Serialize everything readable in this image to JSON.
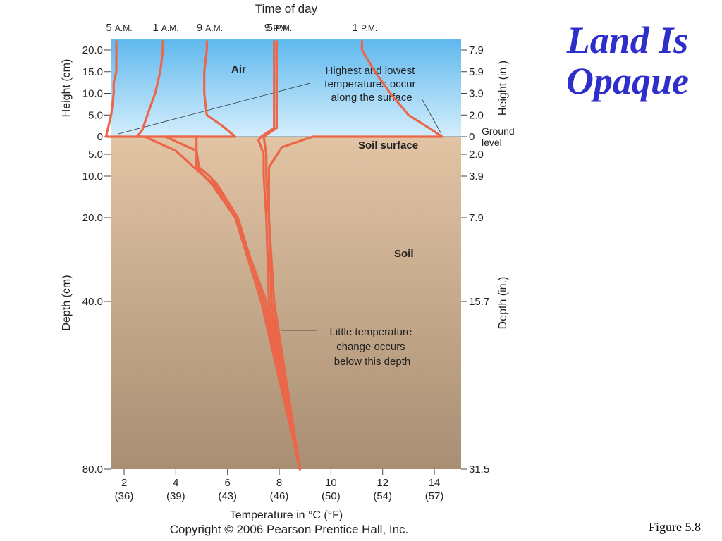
{
  "slide": {
    "title_line1": "Land Is",
    "title_line2": "Opaque",
    "figure_label": "Figure 5.8",
    "copyright": "Copyright © 2006 Pearson Prentice Hall, Inc."
  },
  "colors": {
    "air_top": "#5fb8ee",
    "air_bottom": "#d4eefc",
    "soil_top": "#e2c4a4",
    "soil_bottom": "#a88e73",
    "curve": "#ec6649"
  },
  "chart_data": {
    "type": "line",
    "top_axis_title": "Time of day",
    "x_axis_title": "Temperature in °C (°F)",
    "x_range": [
      1.5,
      15.2
    ],
    "x_ticks": [
      {
        "c": 2,
        "c_label": "2",
        "f_label": "(36)"
      },
      {
        "c": 4,
        "c_label": "4",
        "f_label": "(39)"
      },
      {
        "c": 6,
        "c_label": "6",
        "f_label": "(43)"
      },
      {
        "c": 8,
        "c_label": "8",
        "f_label": "(46)"
      },
      {
        "c": 10,
        "c_label": "10",
        "f_label": "(50)"
      },
      {
        "c": 12,
        "c_label": "12",
        "f_label": "(54)"
      },
      {
        "c": 14,
        "c_label": "14",
        "f_label": "(57)"
      }
    ],
    "left_axis_titles": {
      "height": "Height (cm)",
      "depth": "Depth (cm)"
    },
    "right_axis_titles": {
      "height": "Height (in.)",
      "depth": "Depth (in.)"
    },
    "height_ticks": [
      {
        "cm": 20,
        "cm_label": "20.0",
        "in_label": "7.9"
      },
      {
        "cm": 15,
        "cm_label": "15.0",
        "in_label": "5.9"
      },
      {
        "cm": 10,
        "cm_label": "10.0",
        "in_label": "3.9"
      },
      {
        "cm": 5,
        "cm_label": "5.0",
        "in_label": "2.0"
      },
      {
        "cm": 0,
        "cm_label": "0",
        "in_label": "0"
      }
    ],
    "depth_ticks": [
      {
        "cm": 5,
        "cm_label": "5.0",
        "in_label": "2.0"
      },
      {
        "cm": 10,
        "cm_label": "10.0",
        "in_label": "3.9"
      },
      {
        "cm": 20,
        "cm_label": "20.0",
        "in_label": "7.9"
      },
      {
        "cm": 40,
        "cm_label": "40.0",
        "in_label": "15.7"
      },
      {
        "cm": 80,
        "cm_label": "80.0",
        "in_label": "31.5"
      }
    ],
    "ground_label": "Ground level",
    "zone_labels": {
      "air": "Air",
      "soil_surface": "Soil surface",
      "soil": "Soil"
    },
    "annotations": {
      "surface_note": [
        "Highest and lowest",
        "temperatures occur",
        "along the surface"
      ],
      "depth_note": [
        "Little temperature",
        "change occurs",
        "below this depth"
      ]
    },
    "series": [
      {
        "name": "5 A.M.",
        "time": "5",
        "period": "A.M.",
        "top_temp": 1.7,
        "points": [
          [
            1.7,
            22
          ],
          [
            1.7,
            20
          ],
          [
            1.7,
            15
          ],
          [
            1.6,
            12.5
          ],
          [
            1.6,
            10
          ],
          [
            1.5,
            5
          ],
          [
            1.3,
            0
          ],
          [
            2.8,
            0
          ],
          [
            4.0,
            -4
          ],
          [
            4.7,
            -8
          ],
          [
            5.1,
            -10
          ],
          [
            5.4,
            -12
          ],
          [
            6.3,
            -20
          ],
          [
            7.3,
            -40
          ],
          [
            8.8,
            -80
          ]
        ]
      },
      {
        "name": "1 A.M.",
        "time": "1",
        "period": "A.M.",
        "top_temp": 3.5,
        "points": [
          [
            3.5,
            22
          ],
          [
            3.5,
            20
          ],
          [
            3.4,
            15
          ],
          [
            3.2,
            10
          ],
          [
            2.9,
            5
          ],
          [
            2.7,
            1.5
          ],
          [
            2.5,
            0
          ],
          [
            4.8,
            0
          ],
          [
            4.8,
            -5
          ],
          [
            4.8,
            -8
          ],
          [
            5.1,
            -10
          ],
          [
            5.5,
            -12
          ],
          [
            6.3,
            -20
          ],
          [
            7.5,
            -40
          ],
          [
            8.8,
            -80
          ]
        ]
      },
      {
        "name": "9 A.M.",
        "time": "9",
        "period": "A.M.",
        "top_temp": 5.2,
        "points": [
          [
            5.2,
            22
          ],
          [
            5.2,
            20
          ],
          [
            5.1,
            15
          ],
          [
            5.1,
            10
          ],
          [
            5.2,
            5
          ],
          [
            5.8,
            2.5
          ],
          [
            6.3,
            0
          ],
          [
            3.6,
            0
          ],
          [
            4.8,
            -4
          ],
          [
            4.9,
            -8
          ],
          [
            5.3,
            -10
          ],
          [
            5.6,
            -12
          ],
          [
            6.4,
            -20
          ],
          [
            7.4,
            -40
          ],
          [
            8.8,
            -80
          ]
        ]
      },
      {
        "name": "9 P.M.",
        "time": "9",
        "period": "P.M.",
        "top_temp": 7.8,
        "points": [
          [
            7.8,
            22
          ],
          [
            7.8,
            20
          ],
          [
            7.8,
            15
          ],
          [
            7.8,
            10
          ],
          [
            7.8,
            5
          ],
          [
            7.8,
            2
          ],
          [
            7.3,
            0
          ],
          [
            7.2,
            -1
          ],
          [
            7.4,
            -5
          ],
          [
            7.4,
            -10
          ],
          [
            7.5,
            -20
          ],
          [
            7.6,
            -40
          ],
          [
            8.8,
            -80
          ]
        ]
      },
      {
        "name": "5 P.M.",
        "time": "5",
        "period": "P.M.",
        "top_temp": 7.9,
        "points": [
          [
            7.9,
            22
          ],
          [
            7.9,
            20
          ],
          [
            7.9,
            15
          ],
          [
            7.9,
            10
          ],
          [
            7.9,
            5
          ],
          [
            7.9,
            2
          ],
          [
            7.4,
            0
          ],
          [
            7.5,
            -5
          ],
          [
            7.5,
            -10
          ],
          [
            7.6,
            -20
          ],
          [
            7.7,
            -40
          ],
          [
            8.8,
            -80
          ]
        ]
      },
      {
        "name": "1 P.M.",
        "time": "1",
        "period": "P.M.",
        "top_temp": 11.2,
        "points": [
          [
            11.2,
            22
          ],
          [
            11.2,
            20
          ],
          [
            11.7,
            15
          ],
          [
            12.3,
            10
          ],
          [
            13.0,
            5
          ],
          [
            13.8,
            2
          ],
          [
            14.3,
            0
          ],
          [
            9.3,
            0
          ],
          [
            8.1,
            -3
          ],
          [
            7.6,
            -8
          ],
          [
            7.6,
            -20
          ],
          [
            7.8,
            -40
          ],
          [
            8.8,
            -80
          ]
        ]
      }
    ]
  }
}
